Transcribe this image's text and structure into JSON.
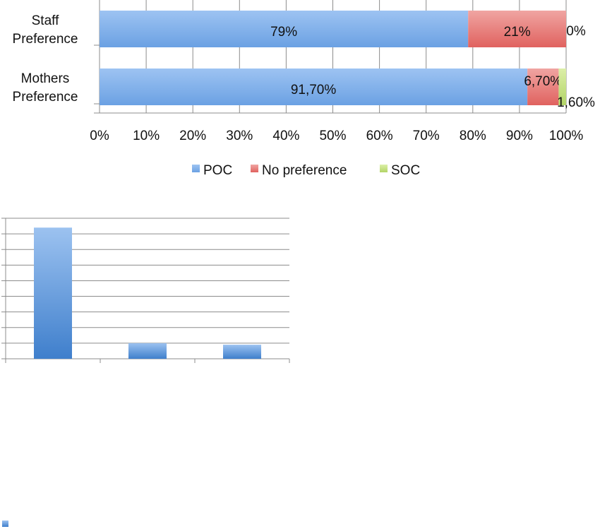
{
  "chart_data": [
    {
      "type": "bar",
      "orientation": "horizontal",
      "stacked": "percent",
      "categories": [
        [
          "Staff",
          "Preference"
        ],
        [
          "Mothers",
          "Preference"
        ]
      ],
      "series": [
        {
          "name": "POC",
          "values": [
            79,
            91.7
          ],
          "labels": [
            "79%",
            "91,70%"
          ],
          "color": "#5b9bd5"
        },
        {
          "name": "No preference",
          "values": [
            21,
            6.7
          ],
          "labels": [
            "21%",
            "6,70%"
          ],
          "color": "#e46c6a"
        },
        {
          "name": "SOC",
          "values": [
            0,
            1.6
          ],
          "labels": [
            "0%",
            "1,60%"
          ],
          "color": "#c3e07e"
        }
      ],
      "xlim": [
        0,
        100
      ],
      "xticks": [
        "0%",
        "10%",
        "20%",
        "30%",
        "40%",
        "50%",
        "60%",
        "70%",
        "80%",
        "90%",
        "100%"
      ],
      "grid": true,
      "legend": "bottom"
    },
    {
      "type": "bar",
      "orientation": "vertical",
      "categories": [
        "",
        "",
        ""
      ],
      "series": [
        {
          "name": "",
          "values": [
            84,
            10,
            9
          ],
          "color": "#4a86d0"
        }
      ],
      "ylim": [
        0,
        90
      ],
      "gridlines": 9,
      "grid": true,
      "legend": "bottom-left"
    }
  ]
}
